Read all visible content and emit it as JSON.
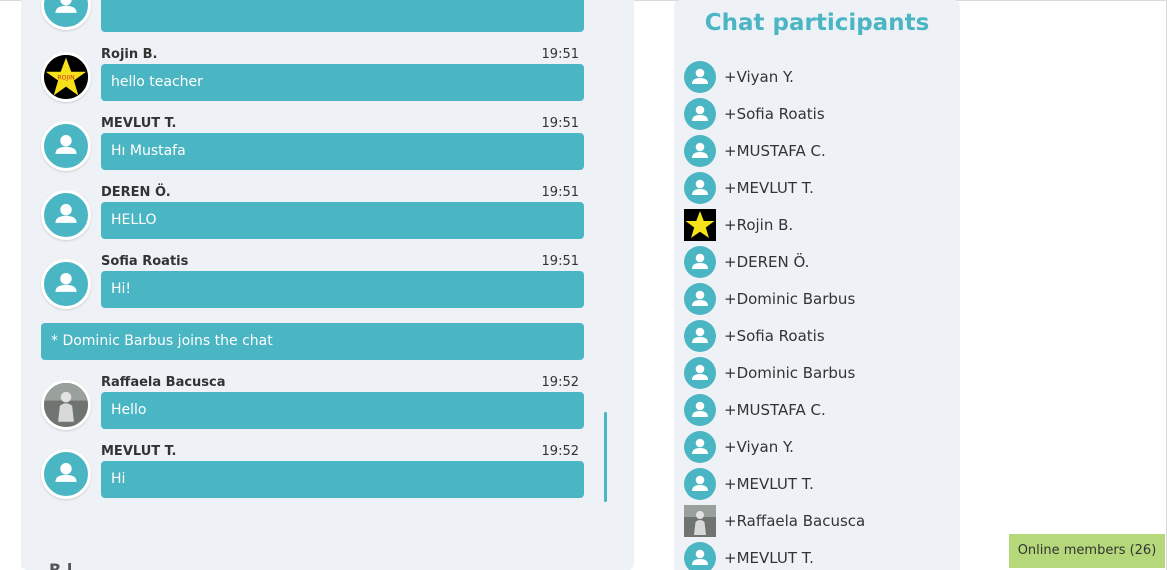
{
  "chat": {
    "messages": [
      {
        "sender": "",
        "time": "",
        "text": "",
        "avatar": "default"
      },
      {
        "sender": "Rojin B.",
        "time": "19:51",
        "text": "hello teacher",
        "avatar": "star"
      },
      {
        "sender": "MEVLUT T.",
        "time": "19:51",
        "text": "Hı Mustafa",
        "avatar": "default"
      },
      {
        "sender": "DEREN Ö.",
        "time": "19:51",
        "text": "HELLO",
        "avatar": "default"
      },
      {
        "sender": "Sofia Roatis",
        "time": "19:51",
        "text": "Hi!",
        "avatar": "default"
      },
      {
        "sender": "Raffaela Bacusca",
        "time": "19:52",
        "text": "Hello",
        "avatar": "photo"
      },
      {
        "sender": "MEVLUT T.",
        "time": "19:52",
        "text": "Hi",
        "avatar": "default"
      }
    ],
    "system_message": "* Dominic Barbus joins the chat",
    "star_avatar_text": "ROJIN",
    "partial_label": "R l"
  },
  "participants": {
    "title": "Chat participants",
    "items": [
      {
        "name": "+Viyan Y.",
        "avatar": "default"
      },
      {
        "name": "+Sofia Roatis",
        "avatar": "default"
      },
      {
        "name": "+MUSTAFA C.",
        "avatar": "default"
      },
      {
        "name": "+MEVLUT T.",
        "avatar": "default"
      },
      {
        "name": "+Rojin B.",
        "avatar": "star"
      },
      {
        "name": "+DEREN Ö.",
        "avatar": "default"
      },
      {
        "name": "+Dominic Barbus",
        "avatar": "default"
      },
      {
        "name": "+Sofia Roatis",
        "avatar": "default"
      },
      {
        "name": "+Dominic Barbus",
        "avatar": "default"
      },
      {
        "name": "+MUSTAFA C.",
        "avatar": "default"
      },
      {
        "name": "+Viyan Y.",
        "avatar": "default"
      },
      {
        "name": "+MEVLUT T.",
        "avatar": "default"
      },
      {
        "name": "+Raffaela Bacusca",
        "avatar": "photo"
      },
      {
        "name": "+MEVLUT T.",
        "avatar": "default"
      }
    ]
  },
  "online_members_label": "Online members (26)",
  "colors": {
    "accent": "#4ab5c3",
    "panel_bg": "#eef2f6",
    "online_badge": "#b5d97a"
  }
}
